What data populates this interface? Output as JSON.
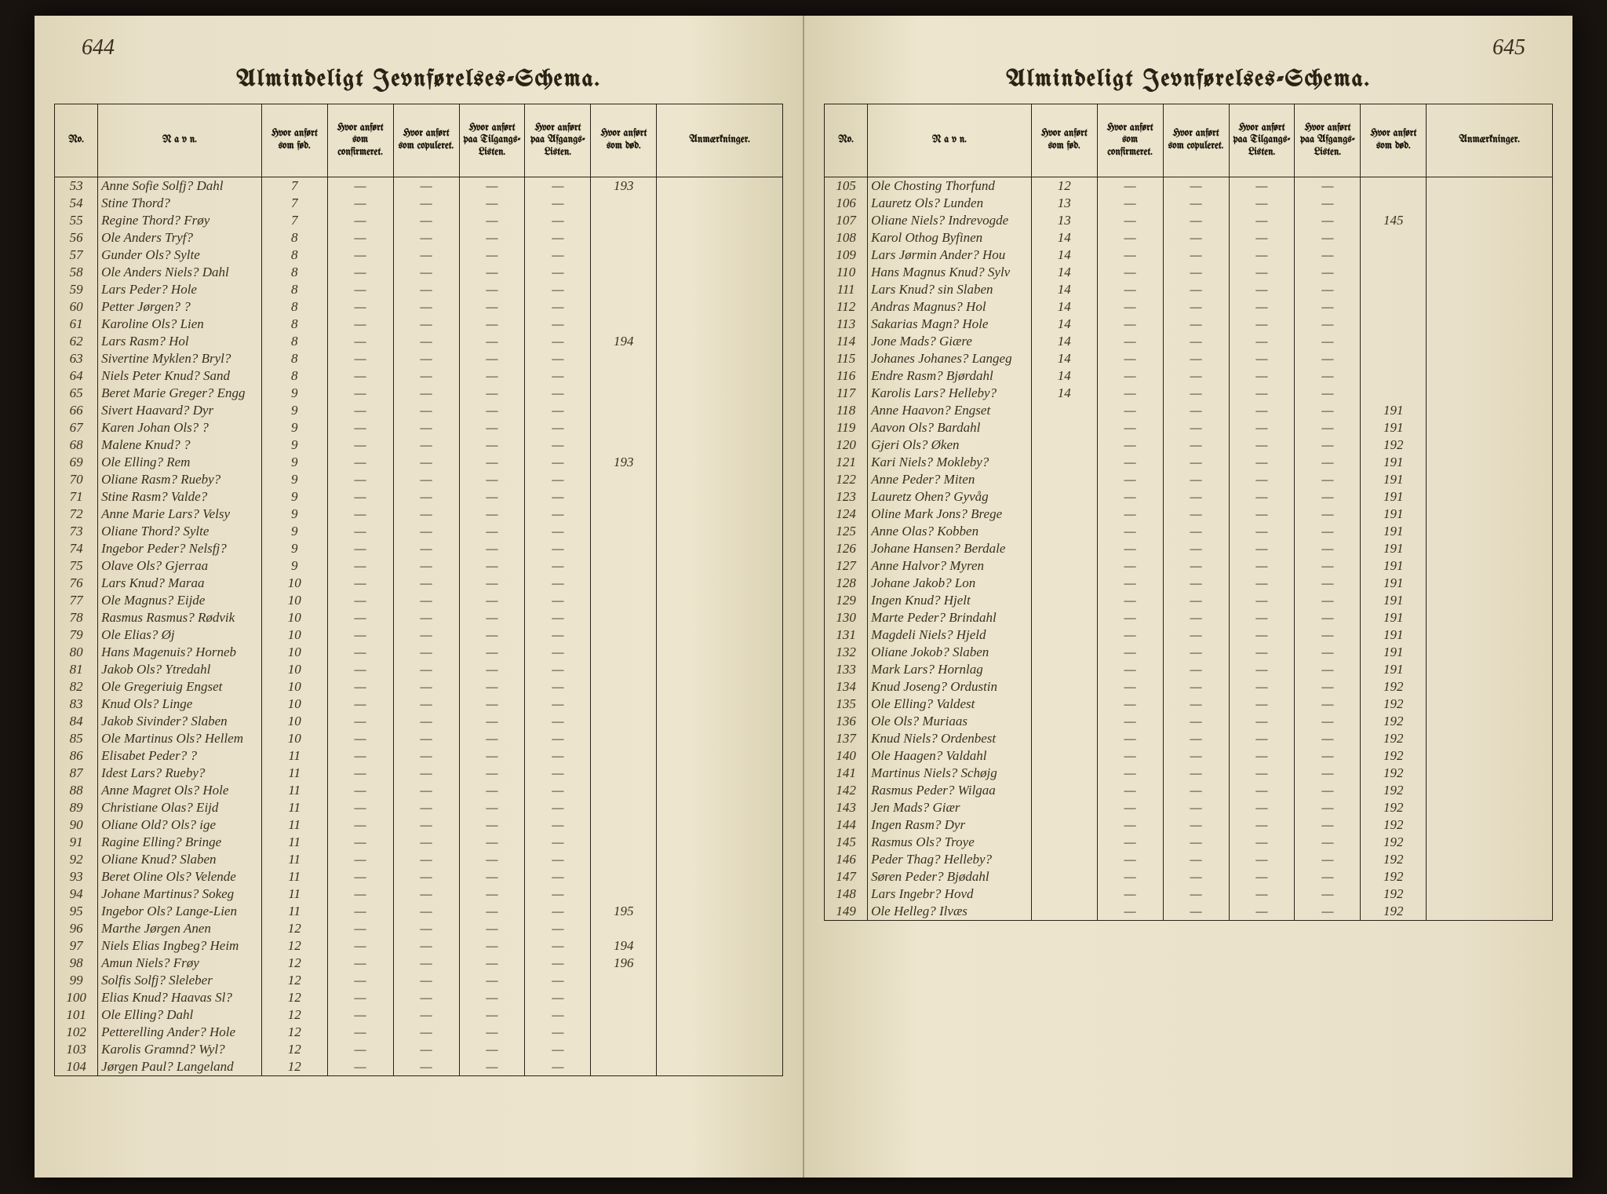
{
  "title": "Almindeligt Jevnførelses-Schema.",
  "headers": {
    "no": "No.",
    "navn": "N a v n.",
    "fod": "Hvor anført som fød.",
    "confirm": "Hvor anført som confirmeret.",
    "copul": "Hvor anført som copuleret.",
    "tilgang": "Hvor anført paa Tilgangs-Listen.",
    "afgang": "Hvor anført paa Afgangs-Listen.",
    "dod": "Hvor anført som død.",
    "anm": "Anmærkninger."
  },
  "leftPage": {
    "pageNumber": "644",
    "rows": [
      {
        "no": "53",
        "name": "Anne Sofie Solfj? Dahl",
        "fod": "7",
        "dod": "193"
      },
      {
        "no": "54",
        "name": "Stine Thord?",
        "fod": "7"
      },
      {
        "no": "55",
        "name": "Regine Thord? Frøy",
        "fod": "7"
      },
      {
        "no": "56",
        "name": "Ole Anders Tryf?",
        "fod": "8"
      },
      {
        "no": "57",
        "name": "Gunder Ols? Sylte",
        "fod": "8"
      },
      {
        "no": "58",
        "name": "Ole Anders Niels? Dahl",
        "fod": "8"
      },
      {
        "no": "59",
        "name": "Lars Peder? Hole",
        "fod": "8"
      },
      {
        "no": "60",
        "name": "Petter Jørgen? ?",
        "fod": "8"
      },
      {
        "no": "61",
        "name": "Karoline Ols? Lien",
        "fod": "8"
      },
      {
        "no": "62",
        "name": "Lars Rasm? Hol",
        "fod": "8",
        "dod": "194"
      },
      {
        "no": "63",
        "name": "Sivertine Myklen? Bryl?",
        "fod": "8"
      },
      {
        "no": "64",
        "name": "Niels Peter Knud? Sand",
        "fod": "8"
      },
      {
        "no": "65",
        "name": "Beret Marie Greger? Engg",
        "fod": "9"
      },
      {
        "no": "66",
        "name": "Sivert Haavard? Dyr",
        "fod": "9"
      },
      {
        "no": "67",
        "name": "Karen Johan Ols? ?",
        "fod": "9"
      },
      {
        "no": "68",
        "name": "Malene Knud? ?",
        "fod": "9"
      },
      {
        "no": "69",
        "name": "Ole Elling? Rem",
        "fod": "9",
        "dod": "193"
      },
      {
        "no": "70",
        "name": "Oliane Rasm? Rueby?",
        "fod": "9"
      },
      {
        "no": "71",
        "name": "Stine Rasm? Valde?",
        "fod": "9"
      },
      {
        "no": "72",
        "name": "Anne Marie Lars? Velsy",
        "fod": "9"
      },
      {
        "no": "73",
        "name": "Oliane Thord? Sylte",
        "fod": "9"
      },
      {
        "no": "74",
        "name": "Ingebor Peder? Nelsfj?",
        "fod": "9"
      },
      {
        "no": "75",
        "name": "Olave Ols? Gjerraa",
        "fod": "9"
      },
      {
        "no": "76",
        "name": "Lars Knud? Maraa",
        "fod": "10"
      },
      {
        "no": "77",
        "name": "Ole Magnus? Eijde",
        "fod": "10"
      },
      {
        "no": "78",
        "name": "Rasmus Rasmus? Rødvik",
        "fod": "10"
      },
      {
        "no": "79",
        "name": "Ole Elias? Øj",
        "fod": "10"
      },
      {
        "no": "80",
        "name": "Hans Magenuis? Horneb",
        "fod": "10"
      },
      {
        "no": "81",
        "name": "Jakob Ols? Ytredahl",
        "fod": "10"
      },
      {
        "no": "82",
        "name": "Ole Gregeriuig Engset",
        "fod": "10"
      },
      {
        "no": "83",
        "name": "Knud Ols? Linge",
        "fod": "10"
      },
      {
        "no": "84",
        "name": "Jakob Sivinder? Slaben",
        "fod": "10"
      },
      {
        "no": "85",
        "name": "Ole Martinus Ols? Hellem",
        "fod": "10"
      },
      {
        "no": "86",
        "name": "Elisabet Peder? ?",
        "fod": "11"
      },
      {
        "no": "87",
        "name": "Idest Lars? Rueby?",
        "fod": "11"
      },
      {
        "no": "88",
        "name": "Anne Magret Ols? Hole",
        "fod": "11"
      },
      {
        "no": "89",
        "name": "Christiane Olas? Eijd",
        "fod": "11"
      },
      {
        "no": "90",
        "name": "Oliane Old? Ols? ige",
        "fod": "11"
      },
      {
        "no": "91",
        "name": "Ragine Elling? Bringe",
        "fod": "11"
      },
      {
        "no": "92",
        "name": "Oliane Knud? Slaben",
        "fod": "11"
      },
      {
        "no": "93",
        "name": "Beret Oline Ols? Velende",
        "fod": "11"
      },
      {
        "no": "94",
        "name": "Johane Martinus? Sokeg",
        "fod": "11"
      },
      {
        "no": "95",
        "name": "Ingebor Ols? Lange-Lien",
        "fod": "11",
        "dod": "195"
      },
      {
        "no": "96",
        "name": "Marthe Jørgen Anen",
        "fod": "12"
      },
      {
        "no": "97",
        "name": "Niels Elias Ingbeg? Heim",
        "fod": "12",
        "dod": "194"
      },
      {
        "no": "98",
        "name": "Amun Niels? Frøy",
        "fod": "12",
        "dod": "196"
      },
      {
        "no": "99",
        "name": "Solfis Solfj? Sleleber",
        "fod": "12"
      },
      {
        "no": "100",
        "name": "Elias Knud? Haavas Sl?",
        "fod": "12"
      },
      {
        "no": "101",
        "name": "Ole Elling? Dahl",
        "fod": "12"
      },
      {
        "no": "102",
        "name": "Petterelling Ander? Hole",
        "fod": "12"
      },
      {
        "no": "103",
        "name": "Karolis Gramnd? Wyl?",
        "fod": "12"
      },
      {
        "no": "104",
        "name": "Jørgen Paul? Langeland",
        "fod": "12"
      }
    ]
  },
  "rightPage": {
    "pageNumber": "645",
    "rows": [
      {
        "no": "105",
        "name": "Ole Chosting Thorfund",
        "fod": "12"
      },
      {
        "no": "106",
        "name": "Lauretz Ols? Lunden",
        "fod": "13"
      },
      {
        "no": "107",
        "name": "Oliane Niels? Indrevogde",
        "fod": "13",
        "dod": "145"
      },
      {
        "no": "108",
        "name": "Karol Othog Byfinen",
        "fod": "14"
      },
      {
        "no": "109",
        "name": "Lars Jørmin Ander? Hou",
        "fod": "14"
      },
      {
        "no": "110",
        "name": "Hans Magnus Knud? Sylv",
        "fod": "14"
      },
      {
        "no": "111",
        "name": "Lars Knud? sin Slaben",
        "fod": "14"
      },
      {
        "no": "112",
        "name": "Andras Magnus? Hol",
        "fod": "14"
      },
      {
        "no": "113",
        "name": "Sakarias Magn? Hole",
        "fod": "14"
      },
      {
        "no": "114",
        "name": "Jone Mads? Giære",
        "fod": "14"
      },
      {
        "no": "115",
        "name": "Johanes Johanes? Langeg",
        "fod": "14"
      },
      {
        "no": "116",
        "name": "Endre Rasm? Bjørdahl",
        "fod": "14"
      },
      {
        "no": "117",
        "name": "Karolis Lars? Helleby?",
        "fod": "14"
      },
      {
        "no": "118",
        "name": "Anne Haavon? Engset",
        "fod": "",
        "dod": "191"
      },
      {
        "no": "119",
        "name": "Aavon Ols? Bardahl",
        "fod": "",
        "dod": "191"
      },
      {
        "no": "120",
        "name": "Gjeri Ols? Øken",
        "fod": "",
        "dod": "192"
      },
      {
        "no": "121",
        "name": "Kari Niels? Mokleby?",
        "fod": "",
        "dod": "191"
      },
      {
        "no": "122",
        "name": "Anne Peder? Miten",
        "fod": "",
        "dod": "191"
      },
      {
        "no": "123",
        "name": "Lauretz Ohen? Gyvåg",
        "fod": "",
        "dod": "191"
      },
      {
        "no": "124",
        "name": "Oline Mark Jons? Brege",
        "fod": "",
        "dod": "191"
      },
      {
        "no": "125",
        "name": "Anne Olas? Kobben",
        "fod": "",
        "dod": "191"
      },
      {
        "no": "126",
        "name": "Johane Hansen? Berdale",
        "fod": "",
        "dod": "191"
      },
      {
        "no": "127",
        "name": "Anne Halvor? Myren",
        "fod": "",
        "dod": "191"
      },
      {
        "no": "128",
        "name": "Johane Jakob? Lon",
        "fod": "",
        "dod": "191"
      },
      {
        "no": "129",
        "name": "Ingen Knud? Hjelt",
        "fod": "",
        "dod": "191"
      },
      {
        "no": "130",
        "name": "Marte Peder? Brindahl",
        "fod": "",
        "dod": "191"
      },
      {
        "no": "131",
        "name": "Magdeli Niels? Hjeld",
        "fod": "",
        "dod": "191"
      },
      {
        "no": "132",
        "name": "Oliane Jokob? Slaben",
        "fod": "",
        "dod": "191"
      },
      {
        "no": "133",
        "name": "Mark Lars? Hornlag",
        "fod": "",
        "dod": "191"
      },
      {
        "no": "134",
        "name": "Knud Joseng? Ordustin",
        "fod": "",
        "dod": "192"
      },
      {
        "no": "135",
        "name": "Ole Elling? Valdest",
        "fod": "",
        "dod": "192"
      },
      {
        "no": "136",
        "name": "Ole Ols? Muriaas",
        "fod": "",
        "dod": "192"
      },
      {
        "no": "137",
        "name": "Knud Niels? Ordenbest",
        "fod": "",
        "dod": "192"
      },
      {
        "no": "140",
        "name": "Ole Haagen? Valdahl",
        "fod": "",
        "dod": "192"
      },
      {
        "no": "141",
        "name": "Martinus Niels? Schøjg",
        "fod": "",
        "dod": "192"
      },
      {
        "no": "142",
        "name": "Rasmus Peder? Wilgaa",
        "fod": "",
        "dod": "192"
      },
      {
        "no": "143",
        "name": "Jen Mads? Giær",
        "fod": "",
        "dod": "192"
      },
      {
        "no": "144",
        "name": "Ingen Rasm? Dyr",
        "fod": "",
        "dod": "192"
      },
      {
        "no": "145",
        "name": "Rasmus Ols? Troye",
        "fod": "",
        "dod": "192"
      },
      {
        "no": "146",
        "name": "Peder Thag? Helleby?",
        "fod": "",
        "dod": "192"
      },
      {
        "no": "147",
        "name": "Søren Peder? Bjødahl",
        "fod": "",
        "dod": "192"
      },
      {
        "no": "148",
        "name": "Lars Ingebr? Hovd",
        "fod": "",
        "dod": "192"
      },
      {
        "no": "149",
        "name": "Ole Helleg? Ilvæs",
        "fod": "",
        "dod": "192"
      }
    ]
  },
  "colors": {
    "ink": "#3a2f1f",
    "paper": "#e8e0c8",
    "border": "#2a2215",
    "background": "#1a1410"
  }
}
